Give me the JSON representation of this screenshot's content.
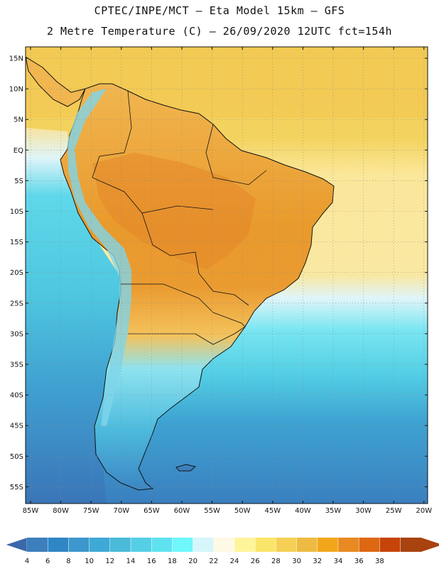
{
  "header": {
    "line1": "CPTEC/INPE/MCT –   Eta Model 15km – GFS",
    "line2": "2 Metre Temperature (C) – 26/09/2020 12UTC fct=154h"
  },
  "map": {
    "lat_labels": [
      "15N",
      "10N",
      "5N",
      "EQ",
      "5S",
      "10S",
      "15S",
      "20S",
      "25S",
      "30S",
      "35S",
      "40S",
      "45S",
      "50S",
      "55S"
    ],
    "lon_labels": [
      "85W",
      "80W",
      "75W",
      "70W",
      "65W",
      "60W",
      "55W",
      "50W",
      "45W",
      "40W",
      "35W",
      "30W",
      "25W",
      "20W"
    ],
    "sea_color": "#5aa8d6",
    "land_color": "#f4b64a"
  },
  "colorbar": {
    "labels": [
      "4",
      "6",
      "8",
      "10",
      "12",
      "14",
      "16",
      "18",
      "20",
      "22",
      "24",
      "26",
      "28",
      "30",
      "32",
      "34",
      "36",
      "38"
    ],
    "colors": [
      "#3c7fbd",
      "#2f86c4",
      "#3d97cd",
      "#3fa9d6",
      "#4bbad9",
      "#55cfe6",
      "#5fe2f0",
      "#6ff7fb",
      "#d6f6fb",
      "#fef9e4",
      "#fef59a",
      "#fbe46a",
      "#f5d055",
      "#edbb41",
      "#f2a61a",
      "#e88a21",
      "#de6712",
      "#c64408",
      "#a8420f"
    ],
    "left_tip_color": "#3b68ab",
    "right_tip_color": "#a8420f"
  }
}
